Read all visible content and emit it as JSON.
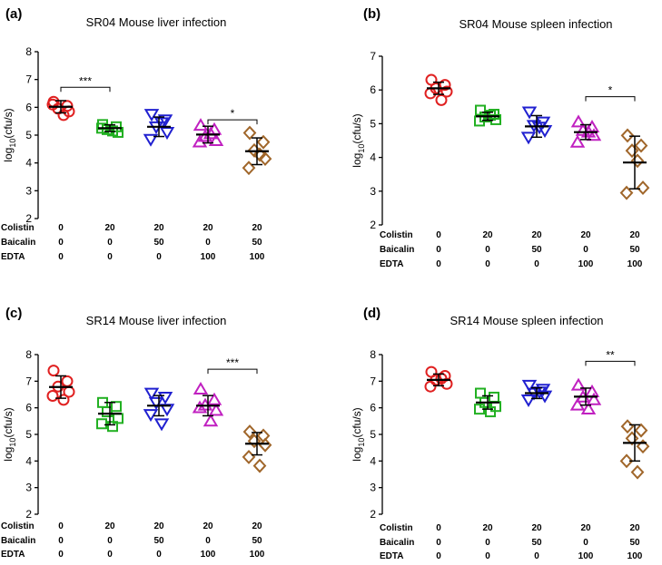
{
  "chart_data": [
    {
      "type": "scatter",
      "panel": "(a)",
      "title": "SR04 Mouse liver infection",
      "ylabel": "log10(cfu/s)",
      "ylabel_base": "log",
      "ylabel_sub": "10",
      "ylabel_rest": "(cfu/s)",
      "ylim": [
        2,
        8
      ],
      "yticks": [
        "2",
        "3",
        "4",
        "5",
        "6",
        "7",
        "8"
      ],
      "row_labels": [
        "Colistin",
        "Baicalin",
        "EDTA"
      ],
      "groups": [
        {
          "colistin": "0",
          "baicalin": "0",
          "edta": "0",
          "marker": "circle",
          "color": "#e02020",
          "mean": 6.02,
          "sd": 0.22,
          "points": [
            6.2,
            6.05,
            5.95,
            5.85,
            6.1,
            5.72
          ]
        },
        {
          "colistin": "20",
          "baicalin": "0",
          "edta": "0",
          "marker": "square",
          "color": "#22b022",
          "mean": 5.25,
          "sd": 0.12,
          "points": [
            5.38,
            5.3,
            5.2,
            5.1,
            5.25,
            5.15
          ]
        },
        {
          "colistin": "20",
          "baicalin": "50",
          "edta": "0",
          "marker": "tri-down",
          "color": "#2020d0",
          "mean": 5.3,
          "sd": 0.35,
          "points": [
            5.75,
            5.55,
            5.3,
            5.1,
            4.85,
            5.45
          ]
        },
        {
          "colistin": "20",
          "baicalin": "0",
          "edta": "100",
          "marker": "tri-up",
          "color": "#c020c0",
          "mean": 5.02,
          "sd": 0.3,
          "points": [
            5.35,
            5.2,
            4.95,
            4.8,
            4.75,
            5.05
          ]
        },
        {
          "colistin": "20",
          "baicalin": "50",
          "edta": "100",
          "marker": "diamond",
          "color": "#a0662a",
          "mean": 4.42,
          "sd": 0.48,
          "points": [
            5.08,
            4.75,
            4.45,
            4.15,
            3.82,
            4.3
          ]
        }
      ],
      "significance": [
        {
          "from": 0,
          "to": 1,
          "label": "***",
          "y": 6.72
        },
        {
          "from": 3,
          "to": 4,
          "label": "*",
          "y": 5.55
        }
      ]
    },
    {
      "type": "scatter",
      "panel": "(b)",
      "title": "SR04 Mouse spleen infection",
      "ylabel": "log10(cfu/s)",
      "ylabel_base": "log",
      "ylabel_sub": "10",
      "ylabel_rest": "(cfu/s)",
      "ylim": [
        2,
        7
      ],
      "yticks": [
        "2",
        "3",
        "4",
        "5",
        "6",
        "7"
      ],
      "row_labels": [
        "Colistin",
        "Baicalin",
        "EDTA"
      ],
      "groups": [
        {
          "colistin": "0",
          "baicalin": "0",
          "edta": "0",
          "marker": "circle",
          "color": "#e02020",
          "mean": 6.05,
          "sd": 0.18,
          "points": [
            6.3,
            6.15,
            6.05,
            5.95,
            5.9,
            5.7
          ]
        },
        {
          "colistin": "20",
          "baicalin": "0",
          "edta": "0",
          "marker": "square",
          "color": "#22b022",
          "mean": 5.22,
          "sd": 0.12,
          "points": [
            5.4,
            5.28,
            5.2,
            5.12,
            5.08,
            5.25
          ]
        },
        {
          "colistin": "20",
          "baicalin": "50",
          "edta": "0",
          "marker": "tri-down",
          "color": "#2020d0",
          "mean": 4.92,
          "sd": 0.32,
          "points": [
            5.35,
            5.05,
            4.95,
            4.8,
            4.6,
            4.9
          ]
        },
        {
          "colistin": "20",
          "baicalin": "0",
          "edta": "100",
          "marker": "tri-up",
          "color": "#c020c0",
          "mean": 4.75,
          "sd": 0.22,
          "points": [
            5.05,
            4.9,
            4.8,
            4.65,
            4.45,
            4.75
          ]
        },
        {
          "colistin": "20",
          "baicalin": "50",
          "edta": "100",
          "marker": "diamond",
          "color": "#a0662a",
          "mean": 3.85,
          "sd": 0.78,
          "points": [
            4.65,
            4.35,
            4.2,
            3.1,
            2.95,
            3.9
          ]
        }
      ],
      "significance": [
        {
          "from": 3,
          "to": 4,
          "label": "*",
          "y": 5.8
        }
      ]
    },
    {
      "type": "scatter",
      "panel": "(c)",
      "title": "SR14 Mouse liver infection",
      "ylabel": "log10(cfu/s)",
      "ylabel_base": "log",
      "ylabel_sub": "10",
      "ylabel_rest": "(cfu/s)",
      "ylim": [
        2,
        8
      ],
      "yticks": [
        "2",
        "3",
        "4",
        "5",
        "6",
        "7",
        "8"
      ],
      "row_labels": [
        "Colistin",
        "Baicalin",
        "EDTA"
      ],
      "groups": [
        {
          "colistin": "0",
          "baicalin": "0",
          "edta": "0",
          "marker": "circle",
          "color": "#e02020",
          "mean": 6.78,
          "sd": 0.42,
          "points": [
            7.4,
            7.0,
            6.8,
            6.6,
            6.45,
            6.3
          ]
        },
        {
          "colistin": "20",
          "baicalin": "0",
          "edta": "0",
          "marker": "square",
          "color": "#22b022",
          "mean": 5.78,
          "sd": 0.42,
          "points": [
            6.2,
            6.05,
            5.85,
            5.6,
            5.4,
            5.3
          ]
        },
        {
          "colistin": "20",
          "baicalin": "50",
          "edta": "0",
          "marker": "tri-down",
          "color": "#2020d0",
          "mean": 6.08,
          "sd": 0.38,
          "points": [
            6.55,
            6.4,
            6.2,
            5.95,
            5.75,
            5.4
          ]
        },
        {
          "colistin": "20",
          "baicalin": "0",
          "edta": "100",
          "marker": "tri-up",
          "color": "#c020c0",
          "mean": 6.08,
          "sd": 0.38,
          "points": [
            6.7,
            6.3,
            6.1,
            5.9,
            6.0,
            5.5
          ]
        },
        {
          "colistin": "20",
          "baicalin": "50",
          "edta": "100",
          "marker": "diamond",
          "color": "#a0662a",
          "mean": 4.65,
          "sd": 0.42,
          "points": [
            5.1,
            4.95,
            4.75,
            4.6,
            4.15,
            3.82
          ]
        }
      ],
      "significance": [
        {
          "from": 3,
          "to": 4,
          "label": "***",
          "y": 7.45
        }
      ]
    },
    {
      "type": "scatter",
      "panel": "(d)",
      "title": "SR14 Mouse spleen infection",
      "ylabel": "log10(cfu/s)",
      "ylabel_base": "log",
      "ylabel_sub": "10",
      "ylabel_rest": "(cfu/s)",
      "ylim": [
        2,
        8
      ],
      "yticks": [
        "2",
        "3",
        "4",
        "5",
        "6",
        "7",
        "8"
      ],
      "row_labels": [
        "Colistin",
        "Baicalin",
        "EDTA"
      ],
      "groups": [
        {
          "colistin": "0",
          "baicalin": "0",
          "edta": "0",
          "marker": "circle",
          "color": "#e02020",
          "mean": 7.05,
          "sd": 0.22,
          "points": [
            7.35,
            7.2,
            7.05,
            6.9,
            6.8,
            7.1
          ]
        },
        {
          "colistin": "20",
          "baicalin": "0",
          "edta": "0",
          "marker": "square",
          "color": "#22b022",
          "mean": 6.2,
          "sd": 0.25,
          "points": [
            6.55,
            6.4,
            6.2,
            6.05,
            5.95,
            5.85
          ]
        },
        {
          "colistin": "20",
          "baicalin": "50",
          "edta": "0",
          "marker": "tri-down",
          "color": "#2020d0",
          "mean": 6.55,
          "sd": 0.2,
          "points": [
            6.85,
            6.7,
            6.55,
            6.45,
            6.3,
            6.6
          ]
        },
        {
          "colistin": "20",
          "baicalin": "0",
          "edta": "100",
          "marker": "tri-up",
          "color": "#c020c0",
          "mean": 6.42,
          "sd": 0.32,
          "points": [
            6.85,
            6.6,
            6.4,
            6.3,
            6.1,
            5.95
          ]
        },
        {
          "colistin": "20",
          "baicalin": "50",
          "edta": "100",
          "marker": "diamond",
          "color": "#a0662a",
          "mean": 4.68,
          "sd": 0.68,
          "points": [
            5.3,
            5.15,
            4.85,
            4.55,
            4.0,
            3.58
          ]
        }
      ],
      "significance": [
        {
          "from": 3,
          "to": 4,
          "label": "**",
          "y": 7.75
        }
      ]
    }
  ]
}
